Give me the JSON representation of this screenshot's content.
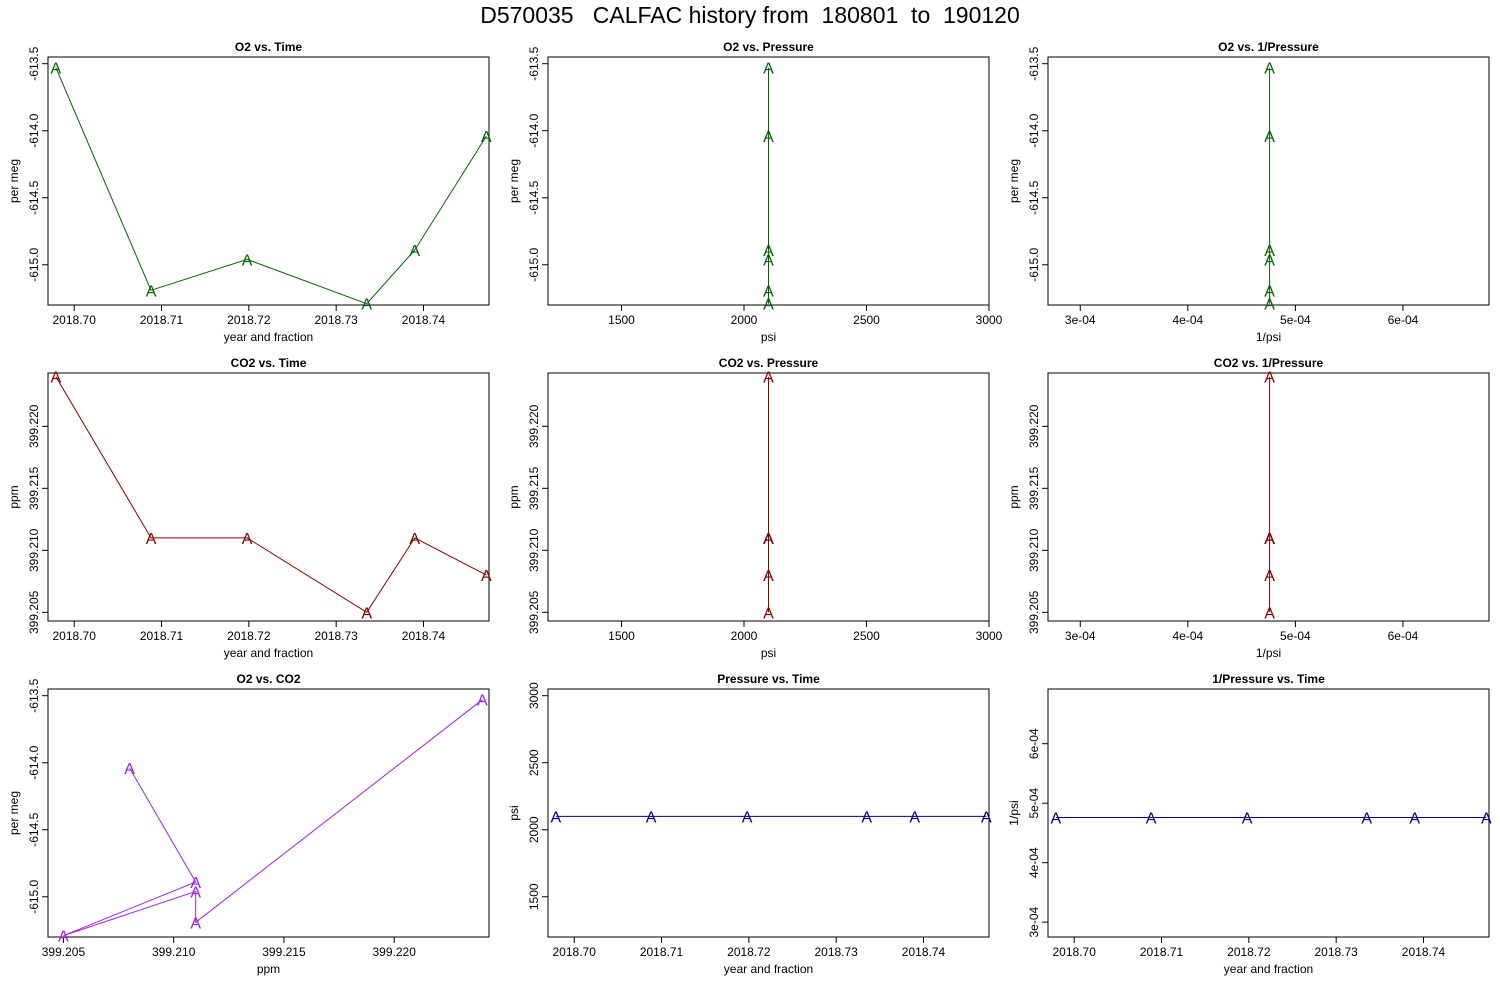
{
  "page": {
    "title": "D570035   CALFAC history from  180801  to  190120"
  },
  "colors": {
    "o2": "#006400",
    "co2": "#8b0000",
    "o2_vs_co2": "#a020f0",
    "pressure": "#00008b"
  },
  "chart_data": [
    {
      "id": "o2-vs-time",
      "type": "line",
      "title": "O2 vs. Time",
      "xlabel": "year and fraction",
      "ylabel": "per meg",
      "xlim": [
        2018.697,
        2018.7475
      ],
      "ylim": [
        -615.3,
        -613.45
      ],
      "xticks": [
        2018.7,
        2018.71,
        2018.72,
        2018.73,
        2018.74
      ],
      "xtick_labels": [
        "2018.70",
        "2018.71",
        "2018.72",
        "2018.73",
        "2018.74"
      ],
      "yticks": [
        -613.5,
        -614.0,
        -614.5,
        -615.0
      ],
      "ytick_labels": [
        "-613.5",
        "-614.0",
        "-614.5",
        "-615.0"
      ],
      "marker": "A",
      "color_key": "o2",
      "x": [
        2018.6979,
        2018.7088,
        2018.7198,
        2018.7335,
        2018.739,
        2018.7472
      ],
      "y": [
        -613.53,
        -615.19,
        -614.96,
        -615.29,
        -614.89,
        -614.04
      ]
    },
    {
      "id": "o2-vs-pressure",
      "type": "scatter",
      "title": "O2 vs. Pressure",
      "xlabel": "psi",
      "ylabel": "per meg",
      "xlim": [
        1200,
        3000
      ],
      "ylim": [
        -615.3,
        -613.45
      ],
      "xticks": [
        1500,
        2000,
        2500,
        3000
      ],
      "xtick_labels": [
        "1500",
        "2000",
        "2500",
        "3000"
      ],
      "yticks": [
        -613.5,
        -614.0,
        -614.5,
        -615.0
      ],
      "ytick_labels": [
        "-613.5",
        "-614.0",
        "-614.5",
        "-615.0"
      ],
      "marker": "A",
      "color_key": "o2",
      "x": [
        2100,
        2100,
        2100,
        2100,
        2100,
        2100
      ],
      "y": [
        -613.53,
        -615.19,
        -614.96,
        -615.29,
        -614.89,
        -614.04
      ]
    },
    {
      "id": "o2-vs-inv-pressure",
      "type": "scatter",
      "title": "O2 vs. 1/Pressure",
      "xlabel": "1/psi",
      "ylabel": "per meg",
      "xlim": [
        0.00027,
        0.00068
      ],
      "ylim": [
        -615.3,
        -613.45
      ],
      "xticks": [
        0.0003,
        0.0004,
        0.0005,
        0.0006
      ],
      "xtick_labels": [
        "3e-04",
        "4e-04",
        "5e-04",
        "6e-04"
      ],
      "yticks": [
        -613.5,
        -614.0,
        -614.5,
        -615.0
      ],
      "ytick_labels": [
        "-613.5",
        "-614.0",
        "-614.5",
        "-615.0"
      ],
      "marker": "A",
      "color_key": "o2",
      "x": [
        0.000476,
        0.000476,
        0.000476,
        0.000476,
        0.000476,
        0.000476
      ],
      "y": [
        -613.53,
        -615.19,
        -614.96,
        -615.29,
        -614.89,
        -614.04
      ]
    },
    {
      "id": "co2-vs-time",
      "type": "line",
      "title": "CO2 vs. Time",
      "xlabel": "year and fraction",
      "ylabel": "ppm",
      "xlim": [
        2018.697,
        2018.7475
      ],
      "ylim": [
        399.2043,
        399.2243
      ],
      "xticks": [
        2018.7,
        2018.71,
        2018.72,
        2018.73,
        2018.74
      ],
      "xtick_labels": [
        "2018.70",
        "2018.71",
        "2018.72",
        "2018.73",
        "2018.74"
      ],
      "yticks": [
        399.205,
        399.21,
        399.215,
        399.22
      ],
      "ytick_labels": [
        "399.205",
        "399.210",
        "399.215",
        "399.220"
      ],
      "marker": "A",
      "color_key": "co2",
      "x": [
        2018.6979,
        2018.7088,
        2018.7198,
        2018.7335,
        2018.739,
        2018.7472
      ],
      "y": [
        399.224,
        399.211,
        399.211,
        399.205,
        399.211,
        399.208
      ]
    },
    {
      "id": "co2-vs-pressure",
      "type": "scatter",
      "title": "CO2 vs. Pressure",
      "xlabel": "psi",
      "ylabel": "ppm",
      "xlim": [
        1200,
        3000
      ],
      "ylim": [
        399.2043,
        399.2243
      ],
      "xticks": [
        1500,
        2000,
        2500,
        3000
      ],
      "xtick_labels": [
        "1500",
        "2000",
        "2500",
        "3000"
      ],
      "yticks": [
        399.205,
        399.21,
        399.215,
        399.22
      ],
      "ytick_labels": [
        "399.205",
        "399.210",
        "399.215",
        "399.220"
      ],
      "marker": "A",
      "color_key": "co2",
      "x": [
        2100,
        2100,
        2100,
        2100,
        2100,
        2100
      ],
      "y": [
        399.224,
        399.211,
        399.211,
        399.205,
        399.211,
        399.208
      ]
    },
    {
      "id": "co2-vs-inv-pressure",
      "type": "scatter",
      "title": "CO2 vs. 1/Pressure",
      "xlabel": "1/psi",
      "ylabel": "ppm",
      "xlim": [
        0.00027,
        0.00068
      ],
      "ylim": [
        399.2043,
        399.2243
      ],
      "xticks": [
        0.0003,
        0.0004,
        0.0005,
        0.0006
      ],
      "xtick_labels": [
        "3e-04",
        "4e-04",
        "5e-04",
        "6e-04"
      ],
      "yticks": [
        399.205,
        399.21,
        399.215,
        399.22
      ],
      "ytick_labels": [
        "399.205",
        "399.210",
        "399.215",
        "399.220"
      ],
      "marker": "A",
      "color_key": "co2",
      "x": [
        0.000476,
        0.000476,
        0.000476,
        0.000476,
        0.000476,
        0.000476
      ],
      "y": [
        399.224,
        399.211,
        399.211,
        399.205,
        399.211,
        399.208
      ]
    },
    {
      "id": "o2-vs-co2",
      "type": "line",
      "title": "O2 vs. CO2",
      "xlabel": "ppm",
      "ylabel": "per meg",
      "xlim": [
        399.2043,
        399.2243
      ],
      "ylim": [
        -615.3,
        -613.45
      ],
      "xticks": [
        399.205,
        399.21,
        399.215,
        399.22
      ],
      "xtick_labels": [
        "399.205",
        "399.210",
        "399.215",
        "399.220"
      ],
      "yticks": [
        -613.5,
        -614.0,
        -614.5,
        -615.0
      ],
      "ytick_labels": [
        "-613.5",
        "-614.0",
        "-614.5",
        "-615.0"
      ],
      "marker": "A",
      "color_key": "o2_vs_co2",
      "x": [
        399.208,
        399.211,
        399.205,
        399.211,
        399.211,
        399.224
      ],
      "y": [
        -614.04,
        -614.89,
        -615.29,
        -614.96,
        -615.19,
        -613.53
      ]
    },
    {
      "id": "pressure-vs-time",
      "type": "line",
      "title": "Pressure vs. Time",
      "xlabel": "year and fraction",
      "ylabel": "psi",
      "xlim": [
        2018.697,
        2018.7475
      ],
      "ylim": [
        1200,
        3050
      ],
      "xticks": [
        2018.7,
        2018.71,
        2018.72,
        2018.73,
        2018.74
      ],
      "xtick_labels": [
        "2018.70",
        "2018.71",
        "2018.72",
        "2018.73",
        "2018.74"
      ],
      "yticks": [
        1500,
        2000,
        2500,
        3000
      ],
      "ytick_labels": [
        "1500",
        "2000",
        "2500",
        "3000"
      ],
      "marker": "A",
      "color_key": "pressure",
      "x": [
        2018.6979,
        2018.7088,
        2018.7198,
        2018.7335,
        2018.739,
        2018.7472
      ],
      "y": [
        2100,
        2100,
        2100,
        2100,
        2100,
        2100
      ]
    },
    {
      "id": "inv-pressure-vs-time",
      "type": "line",
      "title": "1/Pressure vs. Time",
      "xlabel": "year and fraction",
      "ylabel": "1/psi",
      "xlim": [
        2018.697,
        2018.7475
      ],
      "ylim": [
        0.000275,
        0.000692
      ],
      "xticks": [
        2018.7,
        2018.71,
        2018.72,
        2018.73,
        2018.74
      ],
      "xtick_labels": [
        "2018.70",
        "2018.71",
        "2018.72",
        "2018.73",
        "2018.74"
      ],
      "yticks": [
        0.0003,
        0.0004,
        0.0005,
        0.0006
      ],
      "ytick_labels": [
        "3e-04",
        "4e-04",
        "5e-04",
        "6e-04"
      ],
      "marker": "A",
      "color_key": "pressure",
      "x": [
        2018.6979,
        2018.7088,
        2018.7198,
        2018.7335,
        2018.739,
        2018.7472
      ],
      "y": [
        0.000476,
        0.000476,
        0.000476,
        0.000476,
        0.000476,
        0.000476
      ]
    }
  ]
}
